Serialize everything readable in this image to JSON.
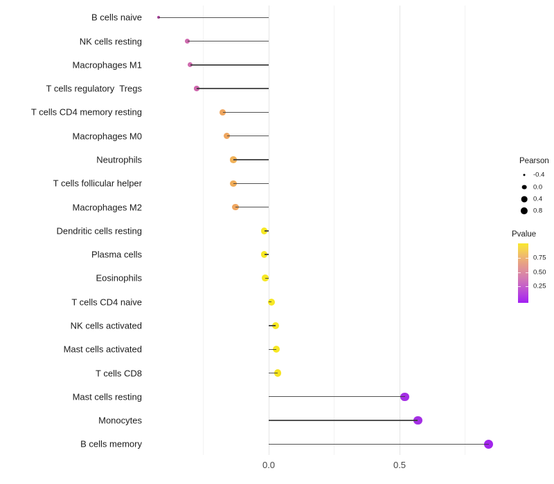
{
  "chart_data": {
    "type": "lollipop",
    "title": "",
    "xlabel": "",
    "ylabel": "",
    "grid": true,
    "x_axis": {
      "range": [
        -0.46,
        1.07
      ],
      "major_ticks": [
        {
          "value": 0.0,
          "label": "0.0"
        },
        {
          "value": 0.5,
          "label": "0.5"
        }
      ],
      "minor_ticks": [
        -0.25,
        0.25,
        0.75
      ]
    },
    "rows": [
      {
        "label": "B cells naive",
        "pearson": -0.42,
        "pvalue_approx": 0.2,
        "color": "#a8409a"
      },
      {
        "label": "NK cells resting",
        "pearson": -0.31,
        "pvalue_approx": 0.32,
        "color": "#ce6bae"
      },
      {
        "label": "Macrophages M1",
        "pearson": -0.3,
        "pvalue_approx": 0.32,
        "color": "#ce6bae"
      },
      {
        "label": "T cells regulatory  Tregs",
        "pearson": -0.275,
        "pvalue_approx": 0.3,
        "color": "#cd66ac"
      },
      {
        "label": "T cells CD4 memory resting",
        "pearson": -0.175,
        "pvalue_approx": 0.66,
        "color": "#efa65f"
      },
      {
        "label": "Macrophages M0",
        "pearson": -0.16,
        "pvalue_approx": 0.66,
        "color": "#efa65f"
      },
      {
        "label": "Neutrophils",
        "pearson": -0.135,
        "pvalue_approx": 0.72,
        "color": "#f0b159"
      },
      {
        "label": "T cells follicular helper",
        "pearson": -0.135,
        "pvalue_approx": 0.7,
        "color": "#f0ac59"
      },
      {
        "label": "Macrophages M2",
        "pearson": -0.127,
        "pvalue_approx": 0.66,
        "color": "#efa65f"
      },
      {
        "label": "Dendritic cells resting",
        "pearson": -0.017,
        "pvalue_approx": 0.92,
        "color": "#f7e824"
      },
      {
        "label": "Plasma cells",
        "pearson": -0.017,
        "pvalue_approx": 0.92,
        "color": "#f7e824"
      },
      {
        "label": "Eosinophils",
        "pearson": -0.014,
        "pvalue_approx": 0.92,
        "color": "#f7e824"
      },
      {
        "label": "T cells CD4 naive",
        "pearson": 0.01,
        "pvalue_approx": 0.92,
        "color": "#f7e824"
      },
      {
        "label": "NK cells activated",
        "pearson": 0.026,
        "pvalue_approx": 0.92,
        "color": "#f7e824"
      },
      {
        "label": "Mast cells activated",
        "pearson": 0.029,
        "pvalue_approx": 0.92,
        "color": "#f7e824"
      },
      {
        "label": "T cells CD8",
        "pearson": 0.034,
        "pvalue_approx": 0.9,
        "color": "#f6e320"
      },
      {
        "label": "Mast cells resting",
        "pearson": 0.52,
        "pvalue_approx": 0.04,
        "color": "#a42fe5"
      },
      {
        "label": "Monocytes",
        "pearson": 0.57,
        "pvalue_approx": 0.04,
        "color": "#a42fe5"
      },
      {
        "label": "B cells memory",
        "pearson": 0.84,
        "pvalue_approx": 0.02,
        "color": "#a225ec"
      }
    ],
    "legend": {
      "pearson": {
        "title": "Pearson",
        "items": [
          {
            "label": "-0.4",
            "value": -0.4
          },
          {
            "label": "0.0",
            "value": 0.0
          },
          {
            "label": "0.4",
            "value": 0.4
          },
          {
            "label": "0.8",
            "value": 0.8
          }
        ],
        "dot_color": "#000000"
      },
      "pvalue": {
        "title": "Pvalue",
        "tick_labels": [
          "0.75",
          "0.50",
          "0.25"
        ],
        "tick_values": [
          0.75,
          0.5,
          0.25
        ],
        "gradient_low_to_high": [
          {
            "pos": 0.0,
            "color": "#a21ff2"
          },
          {
            "pos": 0.12,
            "color": "#b23be2"
          },
          {
            "pos": 0.28,
            "color": "#c55fc9"
          },
          {
            "pos": 0.42,
            "color": "#d37bb2"
          },
          {
            "pos": 0.52,
            "color": "#dc8ba0"
          },
          {
            "pos": 0.65,
            "color": "#e69e88"
          },
          {
            "pos": 0.8,
            "color": "#f0bc6b"
          },
          {
            "pos": 0.92,
            "color": "#f6d84a"
          },
          {
            "pos": 1.0,
            "color": "#f9e82a"
          }
        ]
      }
    },
    "stem_color": "#3a3a3a",
    "background_color": "#ffffff"
  }
}
